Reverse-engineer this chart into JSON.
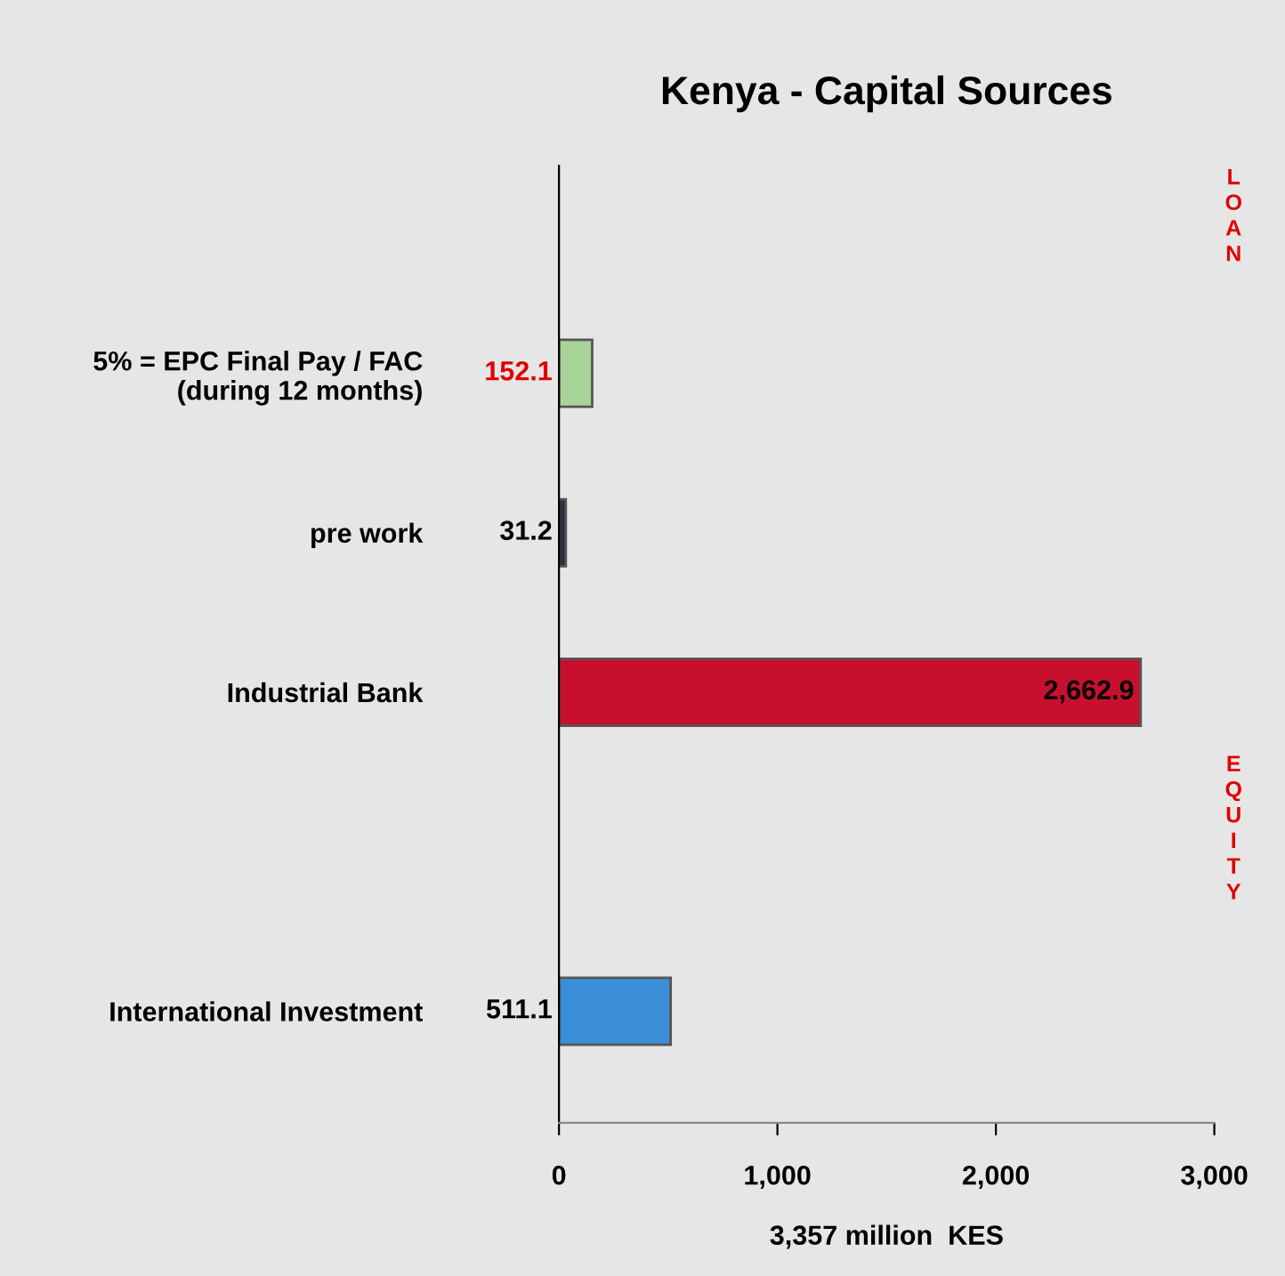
{
  "chart_data": {
    "type": "bar",
    "orientation": "horizontal",
    "title": "Kenya - Capital Sources",
    "xlabel": "3,357 million  KES",
    "categories": [
      "5% = EPC Final Pay / FAC\n(during 12 months)",
      "pre work",
      "Industrial Bank",
      null,
      "International Investment"
    ],
    "values": [
      152.1,
      31.2,
      2662.9,
      null,
      511.1
    ],
    "colors": [
      "#a8d49a",
      "#2a2f3a",
      "#c8102e",
      null,
      "#3a8ed8"
    ],
    "value_labels": [
      "152.1",
      "31.2",
      "2,662.9",
      null,
      "511.1"
    ],
    "xlim": [
      0,
      3000
    ],
    "xticks": [
      0,
      {
        "value": 1000,
        "label": "1,000"
      },
      {
        "value": 2000,
        "label": "2,000"
      },
      {
        "value": 3000,
        "label": "3,000"
      }
    ],
    "grid": false,
    "legend": false,
    "annotations": [
      "L\nO\nA\nN",
      "E\nQ\nU\nI\nT\nY"
    ]
  }
}
